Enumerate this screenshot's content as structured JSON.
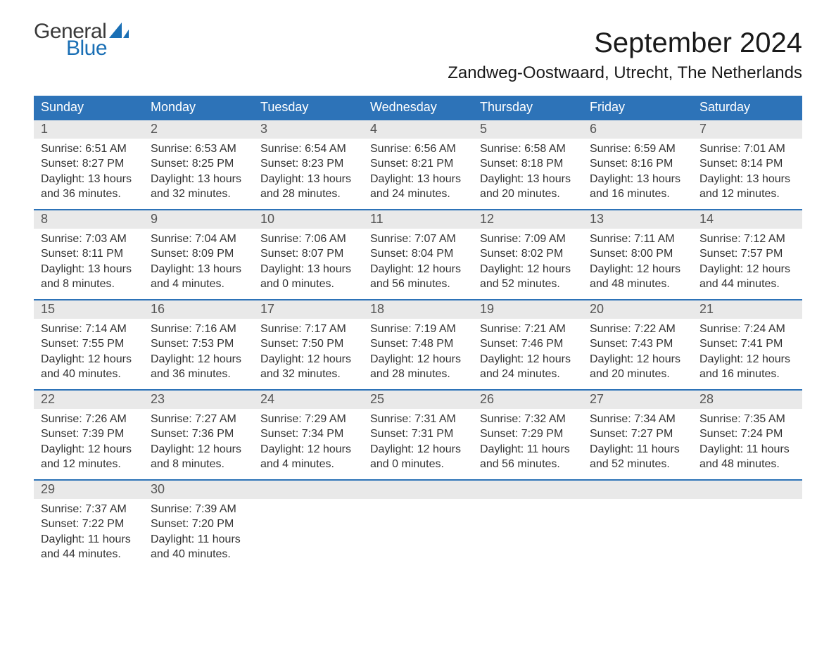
{
  "logo": {
    "text_general": "General",
    "text_blue": "Blue",
    "sail_color": "#1a6fb5",
    "general_color": "#3a3a3a"
  },
  "header": {
    "month_title": "September 2024",
    "location": "Zandweg-Oostwaard, Utrecht, The Netherlands"
  },
  "colors": {
    "header_bg": "#2d73b8",
    "header_text": "#ffffff",
    "daynum_bg": "#e9e9e9",
    "daynum_text": "#555555",
    "body_text": "#333333",
    "week_border": "#2d73b8",
    "page_bg": "#ffffff"
  },
  "typography": {
    "month_title_fontsize": 40,
    "location_fontsize": 24,
    "dayheader_fontsize": 18,
    "daynum_fontsize": 18,
    "daycontent_fontsize": 16
  },
  "calendar": {
    "type": "table",
    "columns": [
      "Sunday",
      "Monday",
      "Tuesday",
      "Wednesday",
      "Thursday",
      "Friday",
      "Saturday"
    ],
    "weeks": [
      [
        {
          "day": "1",
          "sunrise": "Sunrise: 6:51 AM",
          "sunset": "Sunset: 8:27 PM",
          "daylight1": "Daylight: 13 hours",
          "daylight2": "and 36 minutes."
        },
        {
          "day": "2",
          "sunrise": "Sunrise: 6:53 AM",
          "sunset": "Sunset: 8:25 PM",
          "daylight1": "Daylight: 13 hours",
          "daylight2": "and 32 minutes."
        },
        {
          "day": "3",
          "sunrise": "Sunrise: 6:54 AM",
          "sunset": "Sunset: 8:23 PM",
          "daylight1": "Daylight: 13 hours",
          "daylight2": "and 28 minutes."
        },
        {
          "day": "4",
          "sunrise": "Sunrise: 6:56 AM",
          "sunset": "Sunset: 8:21 PM",
          "daylight1": "Daylight: 13 hours",
          "daylight2": "and 24 minutes."
        },
        {
          "day": "5",
          "sunrise": "Sunrise: 6:58 AM",
          "sunset": "Sunset: 8:18 PM",
          "daylight1": "Daylight: 13 hours",
          "daylight2": "and 20 minutes."
        },
        {
          "day": "6",
          "sunrise": "Sunrise: 6:59 AM",
          "sunset": "Sunset: 8:16 PM",
          "daylight1": "Daylight: 13 hours",
          "daylight2": "and 16 minutes."
        },
        {
          "day": "7",
          "sunrise": "Sunrise: 7:01 AM",
          "sunset": "Sunset: 8:14 PM",
          "daylight1": "Daylight: 13 hours",
          "daylight2": "and 12 minutes."
        }
      ],
      [
        {
          "day": "8",
          "sunrise": "Sunrise: 7:03 AM",
          "sunset": "Sunset: 8:11 PM",
          "daylight1": "Daylight: 13 hours",
          "daylight2": "and 8 minutes."
        },
        {
          "day": "9",
          "sunrise": "Sunrise: 7:04 AM",
          "sunset": "Sunset: 8:09 PM",
          "daylight1": "Daylight: 13 hours",
          "daylight2": "and 4 minutes."
        },
        {
          "day": "10",
          "sunrise": "Sunrise: 7:06 AM",
          "sunset": "Sunset: 8:07 PM",
          "daylight1": "Daylight: 13 hours",
          "daylight2": "and 0 minutes."
        },
        {
          "day": "11",
          "sunrise": "Sunrise: 7:07 AM",
          "sunset": "Sunset: 8:04 PM",
          "daylight1": "Daylight: 12 hours",
          "daylight2": "and 56 minutes."
        },
        {
          "day": "12",
          "sunrise": "Sunrise: 7:09 AM",
          "sunset": "Sunset: 8:02 PM",
          "daylight1": "Daylight: 12 hours",
          "daylight2": "and 52 minutes."
        },
        {
          "day": "13",
          "sunrise": "Sunrise: 7:11 AM",
          "sunset": "Sunset: 8:00 PM",
          "daylight1": "Daylight: 12 hours",
          "daylight2": "and 48 minutes."
        },
        {
          "day": "14",
          "sunrise": "Sunrise: 7:12 AM",
          "sunset": "Sunset: 7:57 PM",
          "daylight1": "Daylight: 12 hours",
          "daylight2": "and 44 minutes."
        }
      ],
      [
        {
          "day": "15",
          "sunrise": "Sunrise: 7:14 AM",
          "sunset": "Sunset: 7:55 PM",
          "daylight1": "Daylight: 12 hours",
          "daylight2": "and 40 minutes."
        },
        {
          "day": "16",
          "sunrise": "Sunrise: 7:16 AM",
          "sunset": "Sunset: 7:53 PM",
          "daylight1": "Daylight: 12 hours",
          "daylight2": "and 36 minutes."
        },
        {
          "day": "17",
          "sunrise": "Sunrise: 7:17 AM",
          "sunset": "Sunset: 7:50 PM",
          "daylight1": "Daylight: 12 hours",
          "daylight2": "and 32 minutes."
        },
        {
          "day": "18",
          "sunrise": "Sunrise: 7:19 AM",
          "sunset": "Sunset: 7:48 PM",
          "daylight1": "Daylight: 12 hours",
          "daylight2": "and 28 minutes."
        },
        {
          "day": "19",
          "sunrise": "Sunrise: 7:21 AM",
          "sunset": "Sunset: 7:46 PM",
          "daylight1": "Daylight: 12 hours",
          "daylight2": "and 24 minutes."
        },
        {
          "day": "20",
          "sunrise": "Sunrise: 7:22 AM",
          "sunset": "Sunset: 7:43 PM",
          "daylight1": "Daylight: 12 hours",
          "daylight2": "and 20 minutes."
        },
        {
          "day": "21",
          "sunrise": "Sunrise: 7:24 AM",
          "sunset": "Sunset: 7:41 PM",
          "daylight1": "Daylight: 12 hours",
          "daylight2": "and 16 minutes."
        }
      ],
      [
        {
          "day": "22",
          "sunrise": "Sunrise: 7:26 AM",
          "sunset": "Sunset: 7:39 PM",
          "daylight1": "Daylight: 12 hours",
          "daylight2": "and 12 minutes."
        },
        {
          "day": "23",
          "sunrise": "Sunrise: 7:27 AM",
          "sunset": "Sunset: 7:36 PM",
          "daylight1": "Daylight: 12 hours",
          "daylight2": "and 8 minutes."
        },
        {
          "day": "24",
          "sunrise": "Sunrise: 7:29 AM",
          "sunset": "Sunset: 7:34 PM",
          "daylight1": "Daylight: 12 hours",
          "daylight2": "and 4 minutes."
        },
        {
          "day": "25",
          "sunrise": "Sunrise: 7:31 AM",
          "sunset": "Sunset: 7:31 PM",
          "daylight1": "Daylight: 12 hours",
          "daylight2": "and 0 minutes."
        },
        {
          "day": "26",
          "sunrise": "Sunrise: 7:32 AM",
          "sunset": "Sunset: 7:29 PM",
          "daylight1": "Daylight: 11 hours",
          "daylight2": "and 56 minutes."
        },
        {
          "day": "27",
          "sunrise": "Sunrise: 7:34 AM",
          "sunset": "Sunset: 7:27 PM",
          "daylight1": "Daylight: 11 hours",
          "daylight2": "and 52 minutes."
        },
        {
          "day": "28",
          "sunrise": "Sunrise: 7:35 AM",
          "sunset": "Sunset: 7:24 PM",
          "daylight1": "Daylight: 11 hours",
          "daylight2": "and 48 minutes."
        }
      ],
      [
        {
          "day": "29",
          "sunrise": "Sunrise: 7:37 AM",
          "sunset": "Sunset: 7:22 PM",
          "daylight1": "Daylight: 11 hours",
          "daylight2": "and 44 minutes."
        },
        {
          "day": "30",
          "sunrise": "Sunrise: 7:39 AM",
          "sunset": "Sunset: 7:20 PM",
          "daylight1": "Daylight: 11 hours",
          "daylight2": "and 40 minutes."
        },
        null,
        null,
        null,
        null,
        null
      ]
    ]
  }
}
